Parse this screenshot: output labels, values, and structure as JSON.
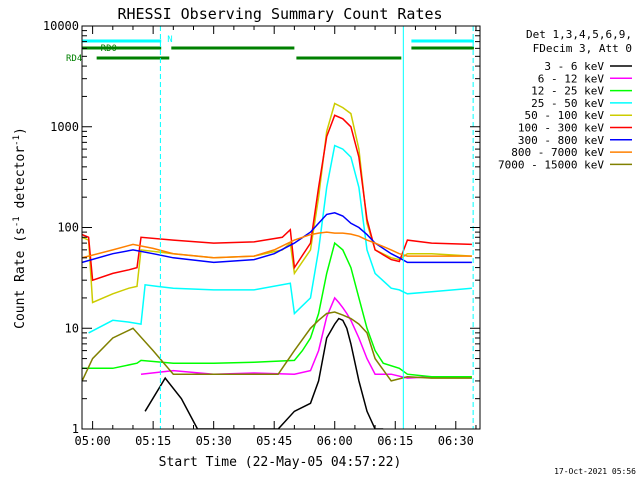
{
  "chart_data": {
    "type": "line",
    "title": "RHESSI Observing Summary Count Rates",
    "xlabel": "Start Time (22-May-05 04:57:22)",
    "ylabel": "Count Rate (s",
    "ylabel_sup1": "-1",
    "ylabel_mid": " detector",
    "ylabel_sup2": "-1",
    "ylabel_end": ")",
    "y_scale": "log",
    "ylim": [
      1,
      10000
    ],
    "xlim_minutes": [
      297.37,
      396.0
    ],
    "x_ticks": [
      {
        "minutes": 300,
        "label": "05:00"
      },
      {
        "minutes": 315,
        "label": "05:15"
      },
      {
        "minutes": 330,
        "label": "05:30"
      },
      {
        "minutes": 345,
        "label": "05:45"
      },
      {
        "minutes": 360,
        "label": "06:00"
      },
      {
        "minutes": 375,
        "label": "06:15"
      },
      {
        "minutes": 390,
        "label": "06:30"
      }
    ],
    "y_ticks": [
      {
        "value": 1,
        "label": "1"
      },
      {
        "value": 10,
        "label": "10"
      },
      {
        "value": 100,
        "label": "100"
      },
      {
        "value": 1000,
        "label": "1000"
      },
      {
        "value": 10000,
        "label": "10000"
      }
    ],
    "legend_header": [
      "Det 1,3,4,5,6,9,",
      "FDecim 3, Att 0"
    ],
    "legend_position": "right",
    "series": [
      {
        "name": "3 - 6 keV",
        "color": "#000000",
        "x": [
          313,
          318,
          322,
          326,
          330,
          338,
          346,
          350,
          354,
          356,
          358,
          360,
          361,
          362,
          363,
          364,
          366,
          368,
          370,
          372
        ],
        "y": [
          1.5,
          3.2,
          2.0,
          1.0,
          1.0,
          1.0,
          1.0,
          1.5,
          1.8,
          3.0,
          8.0,
          11.0,
          12.5,
          12.0,
          10.0,
          7.0,
          3.0,
          1.5,
          1.0,
          1.0
        ]
      },
      {
        "name": "6 - 12 keV",
        "color": "#ff00ff",
        "x": [
          312,
          320,
          330,
          340,
          350,
          354,
          356,
          358,
          360,
          361,
          362,
          363,
          364,
          366,
          368,
          370,
          374,
          378,
          384,
          394
        ],
        "y": [
          3.5,
          3.8,
          3.5,
          3.6,
          3.5,
          3.8,
          6.0,
          13.0,
          20.0,
          18.0,
          16.0,
          14.0,
          12.0,
          8.0,
          5.0,
          3.5,
          3.5,
          3.2,
          3.3,
          3.3
        ]
      },
      {
        "name": "12 - 25 keV",
        "color": "#00ff00",
        "x": [
          297.4,
          305,
          311,
          312,
          320,
          330,
          340,
          350,
          352,
          354,
          356,
          358,
          360,
          362,
          364,
          366,
          368,
          370,
          372,
          376,
          378,
          384,
          394
        ],
        "y": [
          4.0,
          4.0,
          4.5,
          4.8,
          4.5,
          4.5,
          4.6,
          4.8,
          6.0,
          8.0,
          14.0,
          35.0,
          70.0,
          60.0,
          40.0,
          20.0,
          10.0,
          6.0,
          4.5,
          4.0,
          3.5,
          3.3,
          3.3
        ]
      },
      {
        "name": "25 - 50 keV",
        "color": "#00ffff",
        "x": [
          299,
          305,
          309,
          312,
          313,
          316,
          320,
          330,
          340,
          349,
          350,
          354,
          356,
          358,
          360,
          362,
          364,
          366,
          368,
          370,
          374,
          376,
          378,
          384,
          394
        ],
        "y": [
          9.0,
          12.0,
          11.5,
          11.0,
          27.0,
          26.0,
          25.0,
          24.0,
          24.0,
          28.0,
          14.0,
          20.0,
          60.0,
          250.0,
          650.0,
          600.0,
          500.0,
          250.0,
          60.0,
          35.0,
          25.0,
          24.0,
          22.0,
          23.0,
          25.0
        ]
      },
      {
        "name": "50 - 100 keV",
        "color": "#cccc00",
        "x": [
          297.4,
          299,
          300,
          305,
          309,
          311,
          312,
          320,
          330,
          340,
          347,
          349,
          350,
          354,
          356,
          358,
          360,
          362,
          364,
          366,
          368,
          370,
          374,
          376,
          378,
          384,
          394
        ],
        "y": [
          80.0,
          75.0,
          18.0,
          22.0,
          25.0,
          26.0,
          60.0,
          55.0,
          50.0,
          52.0,
          60.0,
          70.0,
          35.0,
          60.0,
          200.0,
          900.0,
          1700.0,
          1550.0,
          1350.0,
          600.0,
          110.0,
          60.0,
          50.0,
          48.0,
          55.0,
          55.0,
          52.0
        ]
      },
      {
        "name": "100 - 300 keV",
        "color": "#ff0000",
        "x": [
          297.4,
          299,
          300,
          305,
          309,
          311,
          312,
          320,
          330,
          340,
          347,
          349,
          350,
          354,
          356,
          358,
          360,
          362,
          364,
          366,
          368,
          370,
          374,
          376,
          378,
          384,
          394
        ],
        "y": [
          85.0,
          80.0,
          30.0,
          35.0,
          38.0,
          40.0,
          80.0,
          75.0,
          70.0,
          72.0,
          80.0,
          95.0,
          40.0,
          70.0,
          250.0,
          800.0,
          1300.0,
          1200.0,
          1000.0,
          500.0,
          120.0,
          60.0,
          48.0,
          46.0,
          75.0,
          70.0,
          68.0
        ]
      },
      {
        "name": "300 - 800 keV",
        "color": "#0000ff",
        "x": [
          297.4,
          305,
          310,
          315,
          320,
          330,
          340,
          345,
          350,
          354,
          356,
          358,
          360,
          362,
          364,
          366,
          368,
          370,
          374,
          376,
          378,
          384,
          394
        ],
        "y": [
          45.0,
          55.0,
          60.0,
          55.0,
          50.0,
          45.0,
          48.0,
          55.0,
          70.0,
          90.0,
          110.0,
          135.0,
          140.0,
          130.0,
          110.0,
          100.0,
          85.0,
          70.0,
          55.0,
          50.0,
          45.0,
          45.0,
          45.0
        ]
      },
      {
        "name": "800 - 7000 keV",
        "color": "#ff8000",
        "x": [
          297.4,
          305,
          310,
          315,
          320,
          330,
          340,
          345,
          350,
          354,
          356,
          358,
          360,
          362,
          364,
          366,
          368,
          370,
          374,
          376,
          378,
          384,
          394
        ],
        "y": [
          50.0,
          60.0,
          68.0,
          62.0,
          55.0,
          50.0,
          52.0,
          60.0,
          75.0,
          85.0,
          88.0,
          90.0,
          88.0,
          88.0,
          86.0,
          82.0,
          75.0,
          70.0,
          60.0,
          55.0,
          52.0,
          52.0,
          52.0
        ]
      },
      {
        "name": "7000 - 15000 keV",
        "color": "#808000",
        "x": [
          297.4,
          300,
          305,
          310,
          315,
          320,
          330,
          340,
          346,
          350,
          354,
          356,
          358,
          360,
          362,
          364,
          366,
          368,
          370,
          374,
          378,
          384,
          394
        ],
        "y": [
          3.0,
          5.0,
          8.0,
          10.0,
          6.0,
          3.5,
          3.5,
          3.5,
          3.5,
          6.0,
          10.0,
          12.0,
          14.0,
          14.5,
          13.5,
          12.5,
          11.0,
          9.0,
          5.0,
          3.0,
          3.3,
          3.2,
          3.2
        ]
      }
    ],
    "annotations": [
      {
        "label": "N",
        "color": "#00ffff"
      },
      {
        "label": "RD0",
        "color": "#008000"
      },
      {
        "label": "RD4",
        "color": "#008000"
      }
    ],
    "night_bars": [
      {
        "x_start": 297.37,
        "x_end": 317.0
      },
      {
        "x_start": 379.0,
        "x_end": 394.5
      }
    ],
    "rd0_bars": [
      {
        "x_start": 297.37,
        "x_end": 317.0
      },
      {
        "x_start": 319.5,
        "x_end": 350.0
      },
      {
        "x_start": 379.0,
        "x_end": 394.5
      }
    ],
    "rd4_bars": [
      {
        "x_start": 301.0,
        "x_end": 319.0
      },
      {
        "x_start": 350.5,
        "x_end": 376.5
      }
    ],
    "vertical_lines": [
      {
        "x": 297.37,
        "style": "solid"
      },
      {
        "x": 316.8,
        "style": "dashed"
      },
      {
        "x": 377.0,
        "style": "solid"
      },
      {
        "x": 394.3,
        "style": "dashed"
      }
    ],
    "footer_date": "17-Oct-2021 05:56"
  }
}
